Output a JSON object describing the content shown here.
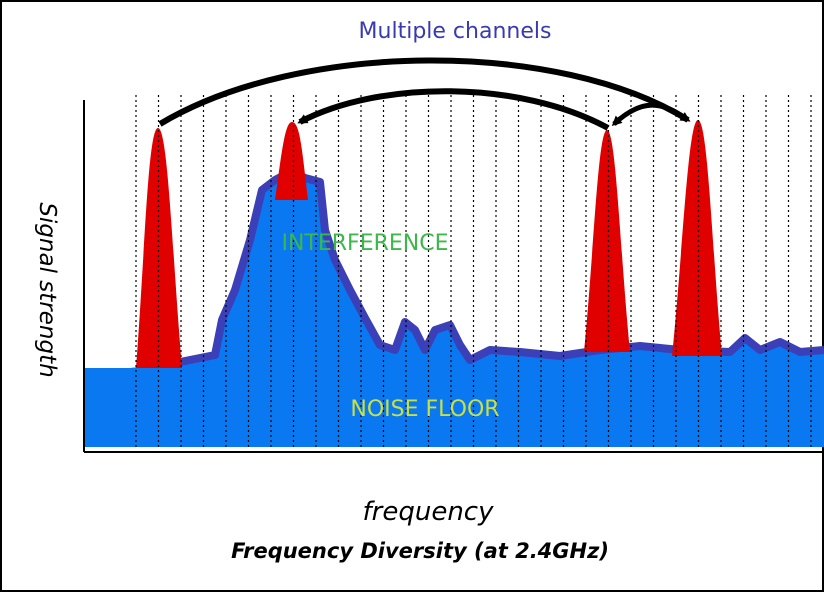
{
  "title": "Multiple channels",
  "y_axis_label": "Signal strength",
  "labels": {
    "interference": "INTERFERENCE",
    "noise_floor": "NOISE FLOOR"
  },
  "x_axis_label": "frequency",
  "caption": "Frequency Diversity (at 2.4GHz)"
}
